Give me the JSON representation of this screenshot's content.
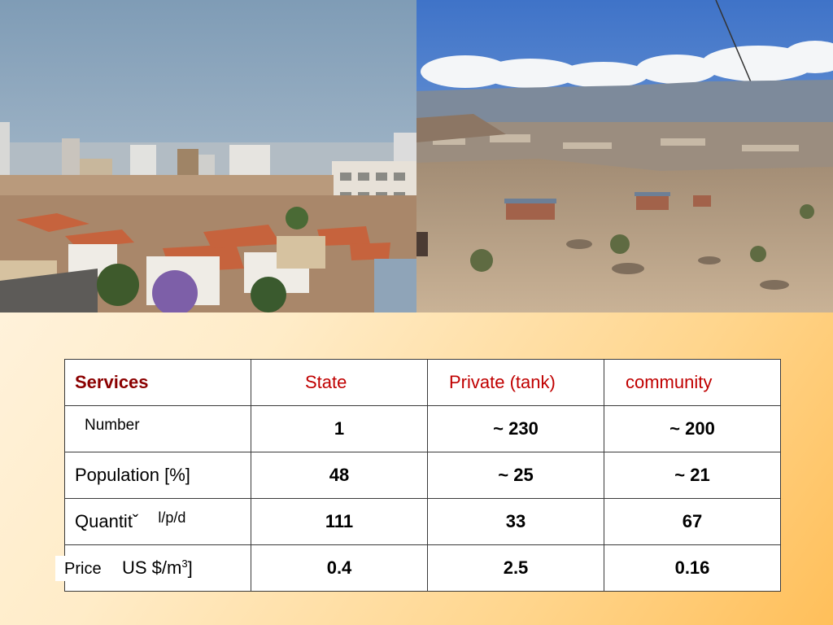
{
  "photos": {
    "left": {
      "alt": "city-skyline-photo"
    },
    "right": {
      "alt": "hillside-settlement-photo"
    }
  },
  "table": {
    "header": {
      "services": "Services",
      "state": "State",
      "private": "Private (tank)",
      "community": "community"
    },
    "rows": [
      {
        "label": "Number",
        "state": "1",
        "private": "~ 230",
        "community": "~ 200"
      },
      {
        "label": "Population [%]",
        "state": "48",
        "private": "~ 25",
        "community": "~ 21"
      },
      {
        "label": "Quantitˇ",
        "unit": "l/p/d",
        "state": "111",
        "private": "33",
        "community": "67"
      },
      {
        "label": "Price",
        "unit_prefix": "US $/m",
        "unit_sup": "3",
        "unit_suffix": "]",
        "state": "0.4",
        "private": "2.5",
        "community": "0.16"
      }
    ]
  },
  "colors": {
    "header_dark_red": "#8b0000",
    "header_red": "#c00000",
    "background_gradient_end": "#ffbf5a"
  }
}
